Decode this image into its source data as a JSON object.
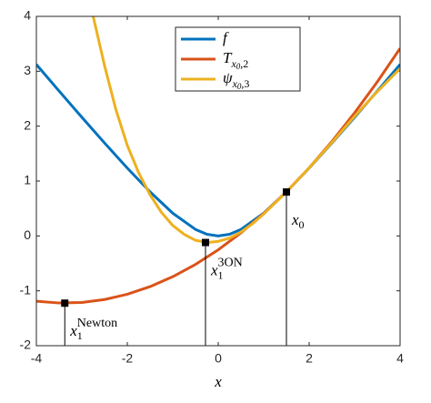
{
  "chart_data": {
    "type": "line",
    "x_label": "x",
    "xlim": [
      -4,
      4
    ],
    "xticks": [
      -4,
      -2,
      0,
      2,
      4
    ],
    "ylim": [
      -2,
      4
    ],
    "yticks": [
      -2,
      -1,
      0,
      1,
      2,
      3,
      4
    ],
    "legend": "top",
    "series": [
      {
        "name": "f",
        "name_sub": [],
        "color": "#0072bd",
        "x": [
          -4,
          -3.5,
          -3,
          -2.5,
          -2,
          -1.5,
          -1,
          -0.5,
          -0.25,
          0,
          0.25,
          0.5,
          1,
          1.5,
          2,
          2.5,
          3,
          3.5,
          4
        ],
        "values": [
          3.123,
          2.64,
          2.162,
          1.693,
          1.236,
          0.803,
          0.414,
          0.118,
          0.031,
          0,
          0.031,
          0.118,
          0.414,
          0.803,
          1.236,
          1.693,
          2.162,
          2.64,
          3.123
        ]
      },
      {
        "name": "T",
        "name_sub": [
          "x",
          "0",
          ",2"
        ],
        "color": "#d95319",
        "x": [
          -4,
          -3.5,
          -3,
          -2.5,
          -2,
          -1.5,
          -1,
          -0.5,
          0,
          0.5,
          1,
          1.5,
          2,
          2.5,
          3,
          3.5,
          4
        ],
        "values": [
          -1.19,
          -1.222,
          -1.212,
          -1.159,
          -1.063,
          -0.924,
          -0.743,
          -0.519,
          -0.253,
          0.056,
          0.408,
          0.803,
          1.24,
          1.72,
          2.243,
          2.809,
          3.417
        ]
      },
      {
        "name": "ψ",
        "name_sub": [
          "x",
          "0",
          ",3"
        ],
        "color": "#edb120",
        "x": [
          -2.75,
          -2.5,
          -2.25,
          -2,
          -1.75,
          -1.5,
          -1.25,
          -1,
          -0.75,
          -0.5,
          -0.25,
          0,
          0.25,
          0.5,
          0.75,
          1,
          1.25,
          1.5,
          2,
          2.5,
          3,
          3.5,
          4
        ],
        "values": [
          4.0,
          3.1,
          2.3,
          1.65,
          1.15,
          0.75,
          0.43,
          0.19,
          0.03,
          -0.08,
          -0.12,
          -0.1,
          -0.04,
          0.07,
          0.22,
          0.4,
          0.6,
          0.803,
          1.24,
          1.7,
          2.18,
          2.63,
          3.05
        ]
      }
    ],
    "points": [
      {
        "x": 1.5,
        "y": 0.8,
        "label": "x",
        "sub": "0",
        "sup": ""
      },
      {
        "x": -0.28,
        "y": -0.12,
        "label": "x",
        "sub": "1",
        "sup": "3ON"
      },
      {
        "x": -3.375,
        "y": -1.225,
        "label": "x",
        "sub": "1",
        "sup": "Newton"
      }
    ]
  }
}
